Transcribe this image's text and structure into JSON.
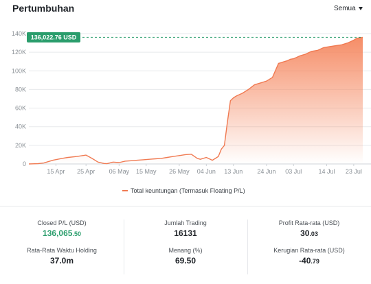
{
  "header": {
    "title": "Pertumbuhan",
    "period_label": "Semua"
  },
  "chart_data": {
    "type": "area",
    "series": [
      {
        "name": "Total keuntungan (Termasuk Floating P/L)",
        "x": [
          "Apr 6",
          "Apr 9",
          "Apr 11",
          "Apr 14",
          "Apr 17",
          "Apr 19",
          "Apr 22",
          "Apr 25",
          "Apr 27",
          "Apr 29",
          "May 1",
          "May 2",
          "May 4",
          "May 6",
          "May 8",
          "May 10",
          "May 12",
          "May 14",
          "May 16",
          "May 18",
          "May 20",
          "May 22",
          "May 24",
          "May 26",
          "May 28",
          "May 30",
          "Jun 1",
          "Jun 2",
          "Jun 4",
          "Jun 6",
          "Jun 8",
          "Jun 9",
          "Jun 10",
          "Jun 11",
          "Jun 12",
          "Jun 13",
          "Jun 14",
          "Jun 16",
          "Jun 18",
          "Jun 20",
          "Jun 22",
          "Jun 24",
          "Jun 26",
          "Jun 28",
          "Jun 30",
          "Jul 1",
          "Jul 2",
          "Jul 3",
          "Jul 5",
          "Jul 7",
          "Jul 9",
          "Jul 11",
          "Jul 13",
          "Jul 15",
          "Jul 17",
          "Jul 19",
          "Jul 21",
          "Jul 23",
          "Jul 24",
          "Jul 26"
        ],
        "values": [
          0,
          300,
          1000,
          4000,
          6000,
          7000,
          8000,
          9500,
          6000,
          2000,
          500,
          300,
          2000,
          1500,
          3000,
          3500,
          4000,
          4500,
          5000,
          5500,
          6000,
          7000,
          8000,
          9000,
          10000,
          10500,
          6000,
          5000,
          7000,
          4000,
          8000,
          16000,
          20000,
          45000,
          68000,
          71000,
          73000,
          76000,
          80000,
          85000,
          87000,
          89000,
          93000,
          108000,
          110000,
          111000,
          112500,
          113000,
          116000,
          118000,
          121000,
          122000,
          125000,
          126000,
          127000,
          128000,
          130000,
          133000,
          135000,
          136022.76
        ]
      }
    ],
    "xlabel": "",
    "ylabel": "",
    "ylim": [
      0,
      140000
    ],
    "y_ticks": [
      "0",
      "20K",
      "40K",
      "60K",
      "80K",
      "100K",
      "120K",
      "140K"
    ],
    "y_tick_values": [
      0,
      20000,
      40000,
      60000,
      80000,
      100000,
      120000,
      140000
    ],
    "x_ticks": [
      "15 Apr",
      "25 Apr",
      "06 May",
      "15 May",
      "26 May",
      "04 Jun",
      "13 Jun",
      "24 Jun",
      "03 Jul",
      "14 Jul",
      "23 Jul"
    ],
    "x_tick_dates": [
      "Apr 15",
      "Apr 25",
      "May 6",
      "May 15",
      "May 26",
      "Jun 4",
      "Jun 13",
      "Jun 24",
      "Jul 3",
      "Jul 14",
      "Jul 23"
    ],
    "last_value_label": "136,022.76 USD",
    "grid": true,
    "legend_position": "bottom",
    "colors": {
      "line": "#f07a52",
      "fill_top": "#f5875f",
      "badge": "#2a9d6c",
      "reference_line": "#2a9d6c"
    }
  },
  "stats": {
    "closed_pl": {
      "label": "Closed P/L (USD)",
      "int": "136,065",
      "dec": ".50"
    },
    "avg_holding": {
      "label": "Rata-Rata Waktu Holding",
      "value": "37.0m"
    },
    "trades": {
      "label": "Jumlah Trading",
      "value": "16131"
    },
    "win_rate": {
      "label": "Menang (%)",
      "value": "69.50"
    },
    "avg_profit": {
      "label": "Profit Rata-rata (USD)",
      "int": "30",
      "dec": ".03"
    },
    "avg_loss": {
      "label": "Kerugian Rata-rata (USD)",
      "int": "-40",
      "dec": ".79"
    }
  }
}
